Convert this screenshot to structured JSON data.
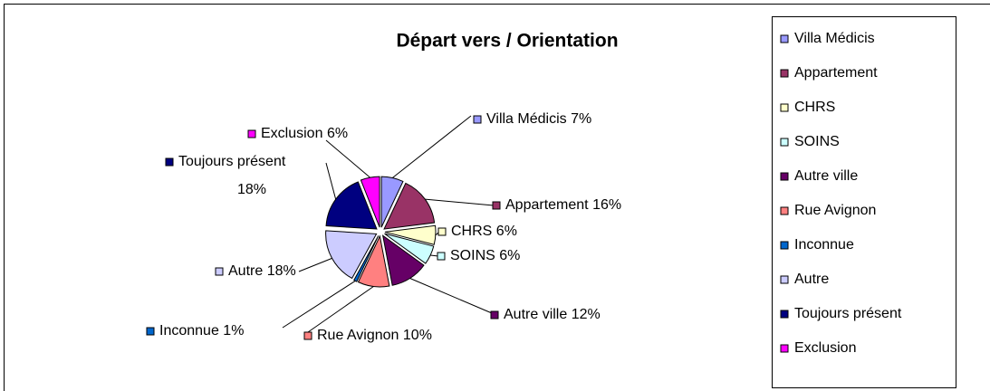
{
  "chart_data": {
    "type": "pie",
    "title": "Départ vers / Orientation",
    "categories": [
      "Villa Médicis",
      "Appartement",
      "CHRS",
      "SOINS",
      "Autre ville",
      "Rue Avignon",
      "Inconnue",
      "Autre",
      "Toujours présent",
      "Exclusion"
    ],
    "values": [
      7,
      16,
      6,
      6,
      12,
      10,
      1,
      18,
      18,
      6
    ],
    "value_labels": [
      "7%",
      "16%",
      "6%",
      "6%",
      "12%",
      "10%",
      "1%",
      "18%",
      "18%",
      "6%"
    ],
    "colors": [
      "#9999ff",
      "#993366",
      "#ffffcc",
      "#ccffff",
      "#660066",
      "#ff8080",
      "#0066cc",
      "#ccccff",
      "#000080",
      "#ff00ff"
    ],
    "legend": "right"
  }
}
